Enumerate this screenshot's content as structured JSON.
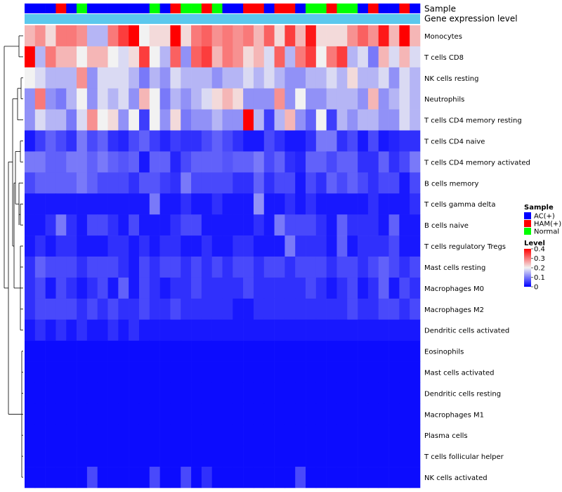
{
  "chart_data": {
    "type": "heatmap",
    "title": "",
    "annotation_labels": [
      "Sample",
      "Gene expression level"
    ],
    "sample_groups": [
      "AC",
      "AC",
      "AC",
      "HAM",
      "AC",
      "Normal",
      "AC",
      "AC",
      "AC",
      "AC",
      "AC",
      "AC",
      "Normal",
      "AC",
      "HAM",
      "Normal",
      "Normal",
      "HAM",
      "Normal",
      "AC",
      "AC",
      "HAM",
      "HAM",
      "AC",
      "HAM",
      "HAM",
      "AC",
      "Normal",
      "Normal",
      "HAM",
      "Normal",
      "Normal",
      "AC",
      "HAM",
      "AC",
      "AC",
      "HAM",
      "AC"
    ],
    "rows": [
      {
        "name": "Monocytes",
        "values": [
          0.25,
          0.28,
          0.22,
          0.3,
          0.3,
          0.28,
          0.15,
          0.15,
          0.3,
          0.35,
          0.4,
          0.2,
          0.22,
          0.22,
          0.4,
          0.22,
          0.3,
          0.32,
          0.28,
          0.3,
          0.28,
          0.3,
          0.25,
          0.32,
          0.22,
          0.35,
          0.25,
          0.38,
          0.22,
          0.22,
          0.22,
          0.28,
          0.32,
          0.28,
          0.38,
          0.25,
          0.4,
          0.25
        ]
      },
      {
        "name": "T cells CD8",
        "values": [
          0.42,
          0.15,
          0.3,
          0.25,
          0.25,
          0.2,
          0.25,
          0.25,
          0.2,
          0.18,
          0.22,
          0.35,
          0.2,
          0.15,
          0.32,
          0.12,
          0.32,
          0.35,
          0.25,
          0.3,
          0.28,
          0.22,
          0.25,
          0.18,
          0.32,
          0.15,
          0.3,
          0.35,
          0.2,
          0.3,
          0.35,
          0.15,
          0.18,
          0.1,
          0.25,
          0.18,
          0.25,
          0.18
        ]
      },
      {
        "name": "NK cells resting",
        "values": [
          0.2,
          0.18,
          0.15,
          0.15,
          0.15,
          0.28,
          0.12,
          0.18,
          0.18,
          0.18,
          0.15,
          0.1,
          0.15,
          0.12,
          0.18,
          0.15,
          0.15,
          0.15,
          0.12,
          0.15,
          0.15,
          0.18,
          0.15,
          0.18,
          0.15,
          0.12,
          0.12,
          0.15,
          0.15,
          0.18,
          0.15,
          0.22,
          0.15,
          0.15,
          0.18,
          0.12,
          0.18,
          0.15
        ]
      },
      {
        "name": "Neutrophils",
        "values": [
          0.12,
          0.3,
          0.12,
          0.1,
          0.15,
          0.2,
          0.12,
          0.18,
          0.15,
          0.18,
          0.12,
          0.25,
          0.2,
          0.1,
          0.15,
          0.12,
          0.15,
          0.18,
          0.22,
          0.25,
          0.22,
          0.12,
          0.12,
          0.12,
          0.28,
          0.12,
          0.2,
          0.12,
          0.12,
          0.15,
          0.15,
          0.15,
          0.12,
          0.25,
          0.12,
          0.15,
          0.18,
          0.15
        ]
      },
      {
        "name": "T cells CD4 memory resting",
        "values": [
          0.12,
          0.18,
          0.15,
          0.15,
          0.1,
          0.18,
          0.28,
          0.2,
          0.22,
          0.12,
          0.2,
          0.05,
          0.2,
          0.12,
          0.22,
          0.1,
          0.12,
          0.12,
          0.15,
          0.12,
          0.12,
          0.42,
          0.15,
          0.05,
          0.15,
          0.25,
          0.12,
          0.08,
          0.2,
          0.05,
          0.15,
          0.12,
          0.15,
          0.15,
          0.12,
          0.12,
          0.18,
          0.15
        ]
      },
      {
        "name": "T cells CD4 naive",
        "values": [
          0.02,
          0.05,
          0.08,
          0.06,
          0.04,
          0.1,
          0.06,
          0.08,
          0.04,
          0.03,
          0.06,
          0.08,
          0.05,
          0.03,
          0.05,
          0.04,
          0.04,
          0.06,
          0.08,
          0.06,
          0.04,
          0.02,
          0.02,
          0.06,
          0.04,
          0.02,
          0.02,
          0.04,
          0.1,
          0.1,
          0.04,
          0.06,
          0.02,
          0.06,
          0.02,
          0.03,
          0.04,
          0.04
        ]
      },
      {
        "name": "T cells CD4 memory activated",
        "values": [
          0.1,
          0.1,
          0.08,
          0.08,
          0.1,
          0.1,
          0.08,
          0.1,
          0.08,
          0.07,
          0.08,
          0.02,
          0.08,
          0.08,
          0.03,
          0.06,
          0.08,
          0.08,
          0.08,
          0.07,
          0.08,
          0.08,
          0.1,
          0.06,
          0.08,
          0.04,
          0.03,
          0.08,
          0.08,
          0.06,
          0.08,
          0.08,
          0.04,
          0.04,
          0.08,
          0.04,
          0.06,
          0.1
        ]
      },
      {
        "name": "B cells memory",
        "values": [
          0.06,
          0.08,
          0.08,
          0.08,
          0.08,
          0.1,
          0.08,
          0.06,
          0.06,
          0.06,
          0.04,
          0.07,
          0.07,
          0.05,
          0.04,
          0.1,
          0.06,
          0.06,
          0.06,
          0.06,
          0.04,
          0.04,
          0.08,
          0.04,
          0.06,
          0.06,
          0.02,
          0.06,
          0.04,
          0.08,
          0.06,
          0.08,
          0.06,
          0.04,
          0.06,
          0.06,
          0.02,
          0.06
        ]
      },
      {
        "name": "T cells gamma delta",
        "values": [
          0.02,
          0.02,
          0.02,
          0.02,
          0.02,
          0.02,
          0.02,
          0.02,
          0.02,
          0.02,
          0.02,
          0.02,
          0.1,
          0.02,
          0.02,
          0.04,
          0.02,
          0.02,
          0.04,
          0.02,
          0.02,
          0.02,
          0.12,
          0.02,
          0.02,
          0.04,
          0.02,
          0.04,
          0.02,
          0.02,
          0.02,
          0.02,
          0.02,
          0.04,
          0.02,
          0.02,
          0.02,
          0.04
        ]
      },
      {
        "name": "B cells naive",
        "values": [
          0.02,
          0.02,
          0.04,
          0.1,
          0.04,
          0.02,
          0.06,
          0.06,
          0.04,
          0.02,
          0.06,
          0.02,
          0.02,
          0.02,
          0.04,
          0.06,
          0.06,
          0.02,
          0.02,
          0.02,
          0.02,
          0.02,
          0.04,
          0.02,
          0.1,
          0.06,
          0.06,
          0.06,
          0.04,
          0.02,
          0.08,
          0.04,
          0.04,
          0.04,
          0.02,
          0.08,
          0.02,
          0.02
        ]
      },
      {
        "name": "T cells regulatory  Tregs",
        "values": [
          0.02,
          0.04,
          0.02,
          0.04,
          0.04,
          0.02,
          0.02,
          0.02,
          0.04,
          0.04,
          0.02,
          0.04,
          0.02,
          0.04,
          0.04,
          0.02,
          0.02,
          0.04,
          0.02,
          0.02,
          0.04,
          0.04,
          0.02,
          0.02,
          0.02,
          0.1,
          0.04,
          0.04,
          0.04,
          0.02,
          0.08,
          0.02,
          0.04,
          0.04,
          0.04,
          0.06,
          0.02,
          0.02
        ]
      },
      {
        "name": "Mast cells resting",
        "values": [
          0.04,
          0.08,
          0.06,
          0.06,
          0.06,
          0.04,
          0.06,
          0.06,
          0.06,
          0.04,
          0.02,
          0.06,
          0.04,
          0.06,
          0.06,
          0.04,
          0.06,
          0.04,
          0.06,
          0.04,
          0.06,
          0.06,
          0.04,
          0.06,
          0.06,
          0.04,
          0.06,
          0.06,
          0.06,
          0.04,
          0.06,
          0.06,
          0.04,
          0.06,
          0.08,
          0.06,
          0.04,
          0.06
        ]
      },
      {
        "name": "Macrophages M0",
        "values": [
          0.04,
          0.06,
          0.02,
          0.06,
          0.04,
          0.02,
          0.04,
          0.06,
          0.02,
          0.08,
          0.02,
          0.06,
          0.04,
          0.02,
          0.04,
          0.04,
          0.06,
          0.04,
          0.04,
          0.04,
          0.04,
          0.06,
          0.04,
          0.04,
          0.04,
          0.04,
          0.04,
          0.06,
          0.04,
          0.02,
          0.04,
          0.06,
          0.02,
          0.04,
          0.08,
          0.02,
          0.06,
          0.04
        ]
      },
      {
        "name": "Macrophages M2",
        "values": [
          0.04,
          0.06,
          0.06,
          0.06,
          0.06,
          0.04,
          0.06,
          0.04,
          0.06,
          0.04,
          0.04,
          0.06,
          0.04,
          0.04,
          0.06,
          0.04,
          0.04,
          0.04,
          0.04,
          0.04,
          0.02,
          0.02,
          0.04,
          0.04,
          0.04,
          0.04,
          0.04,
          0.04,
          0.04,
          0.04,
          0.04,
          0.06,
          0.04,
          0.04,
          0.06,
          0.06,
          0.04,
          0.06
        ]
      },
      {
        "name": "Dendritic cells activated",
        "values": [
          0.02,
          0.04,
          0.02,
          0.04,
          0.02,
          0.04,
          0.02,
          0.02,
          0.04,
          0.02,
          0.04,
          0.02,
          0.02,
          0.02,
          0.02,
          0.02,
          0.02,
          0.02,
          0.02,
          0.02,
          0.02,
          0.02,
          0.02,
          0.02,
          0.02,
          0.02,
          0.02,
          0.02,
          0.02,
          0.02,
          0.02,
          0.02,
          0.02,
          0.02,
          0.02,
          0.02,
          0.02,
          0.02
        ]
      },
      {
        "name": "Eosinophils",
        "values": [
          0.01,
          0.01,
          0.01,
          0.01,
          0.01,
          0.01,
          0.01,
          0.01,
          0.01,
          0.01,
          0.01,
          0.01,
          0.01,
          0.01,
          0.01,
          0.01,
          0.01,
          0.01,
          0.01,
          0.01,
          0.01,
          0.01,
          0.01,
          0.01,
          0.01,
          0.01,
          0.01,
          0.01,
          0.01,
          0.01,
          0.01,
          0.01,
          0.01,
          0.01,
          0.01,
          0.01,
          0.01,
          0.01
        ]
      },
      {
        "name": "Mast cells activated",
        "values": [
          0.01,
          0.01,
          0.01,
          0.01,
          0.01,
          0.01,
          0.01,
          0.01,
          0.01,
          0.01,
          0.01,
          0.01,
          0.01,
          0.01,
          0.01,
          0.01,
          0.01,
          0.01,
          0.01,
          0.01,
          0.01,
          0.01,
          0.01,
          0.01,
          0.01,
          0.01,
          0.01,
          0.01,
          0.01,
          0.01,
          0.01,
          0.01,
          0.01,
          0.01,
          0.01,
          0.01,
          0.01,
          0.01
        ]
      },
      {
        "name": "Dendritic cells resting",
        "values": [
          0.01,
          0.01,
          0.01,
          0.01,
          0.01,
          0.01,
          0.01,
          0.01,
          0.01,
          0.01,
          0.01,
          0.01,
          0.01,
          0.01,
          0.01,
          0.01,
          0.01,
          0.01,
          0.01,
          0.01,
          0.01,
          0.01,
          0.01,
          0.01,
          0.01,
          0.01,
          0.01,
          0.01,
          0.01,
          0.01,
          0.01,
          0.01,
          0.01,
          0.01,
          0.01,
          0.01,
          0.01,
          0.01
        ]
      },
      {
        "name": "Macrophages M1",
        "values": [
          0.01,
          0.01,
          0.01,
          0.01,
          0.01,
          0.01,
          0.01,
          0.01,
          0.01,
          0.01,
          0.01,
          0.01,
          0.01,
          0.01,
          0.01,
          0.01,
          0.01,
          0.01,
          0.01,
          0.01,
          0.01,
          0.01,
          0.01,
          0.01,
          0.01,
          0.01,
          0.01,
          0.01,
          0.01,
          0.01,
          0.01,
          0.01,
          0.01,
          0.01,
          0.01,
          0.01,
          0.01,
          0.01
        ]
      },
      {
        "name": "Plasma cells",
        "values": [
          0.01,
          0.01,
          0.01,
          0.01,
          0.01,
          0.01,
          0.01,
          0.01,
          0.01,
          0.01,
          0.01,
          0.01,
          0.01,
          0.01,
          0.01,
          0.01,
          0.01,
          0.01,
          0.01,
          0.01,
          0.01,
          0.01,
          0.01,
          0.01,
          0.01,
          0.01,
          0.01,
          0.01,
          0.01,
          0.01,
          0.01,
          0.01,
          0.01,
          0.01,
          0.01,
          0.01,
          0.01,
          0.01
        ]
      },
      {
        "name": "T cells follicular helper",
        "values": [
          0.01,
          0.01,
          0.01,
          0.01,
          0.01,
          0.01,
          0.01,
          0.01,
          0.01,
          0.01,
          0.01,
          0.01,
          0.01,
          0.01,
          0.01,
          0.01,
          0.01,
          0.01,
          0.01,
          0.01,
          0.01,
          0.01,
          0.01,
          0.01,
          0.01,
          0.01,
          0.01,
          0.01,
          0.01,
          0.01,
          0.01,
          0.01,
          0.01,
          0.01,
          0.01,
          0.01,
          0.01,
          0.01
        ]
      },
      {
        "name": "NK cells activated",
        "values": [
          0.01,
          0.01,
          0.01,
          0.01,
          0.01,
          0.01,
          0.06,
          0.01,
          0.01,
          0.01,
          0.01,
          0.01,
          0.06,
          0.01,
          0.01,
          0.06,
          0.01,
          0.04,
          0.01,
          0.01,
          0.01,
          0.01,
          0.01,
          0.01,
          0.01,
          0.01,
          0.06,
          0.01,
          0.01,
          0.01,
          0.01,
          0.01,
          0.01,
          0.01,
          0.01,
          0.01,
          0.01,
          0.01
        ]
      }
    ],
    "color_scale": {
      "min": 0,
      "mid": 0.2,
      "max": 0.4,
      "low_color": "#0000ff",
      "mid_color": "#f2f2f2",
      "high_color": "#ff0000"
    },
    "expression_bar_color": "#5bc8ed",
    "legend": {
      "sample_title": "Sample",
      "sample_items": [
        {
          "key": "AC",
          "label": "AC(+)",
          "color": "#0000ff"
        },
        {
          "key": "HAM",
          "label": "HAM(+)",
          "color": "#ff0000"
        },
        {
          "key": "Normal",
          "label": "Normal",
          "color": "#00ff00"
        }
      ],
      "level_title": "Level",
      "level_ticks": [
        "0.4",
        "0.3",
        "0.2",
        "0.1",
        "0"
      ],
      "placement": "right"
    }
  }
}
